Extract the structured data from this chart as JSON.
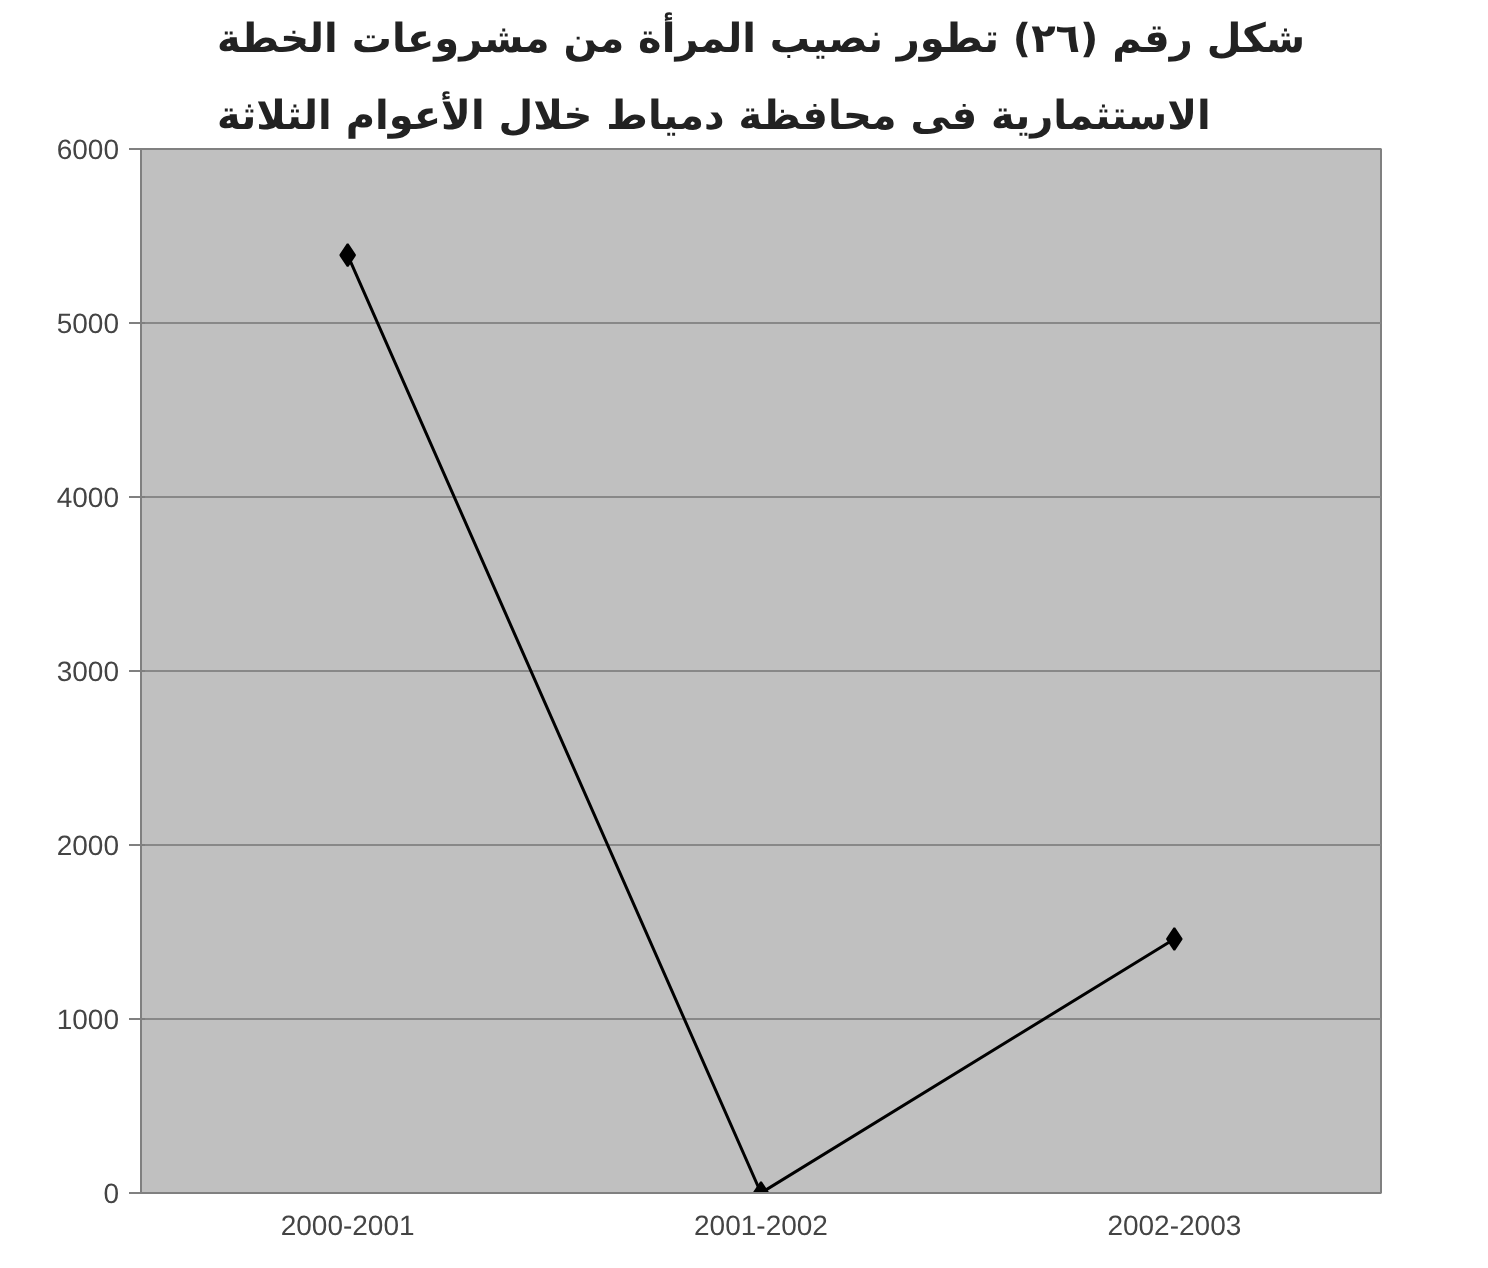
{
  "chart_data": {
    "type": "line",
    "title": "شكل رقم (٢٦) تطور نصيب المرأة من مشروعات الخطة\nالاستثمارية فى محافظة دمياط خلال الأعوام الثلاثة",
    "categories": [
      "2000-2001",
      "2001-2002",
      "2002-2003"
    ],
    "series": [
      {
        "color": "#000000",
        "values": [
          5390,
          0,
          1460
        ]
      }
    ],
    "ylim": [
      0,
      6000
    ],
    "yticks": [
      0,
      1000,
      2000,
      3000,
      4000,
      5000,
      6000
    ],
    "grid": "y",
    "marker": "diamond",
    "line_style": "solid"
  }
}
